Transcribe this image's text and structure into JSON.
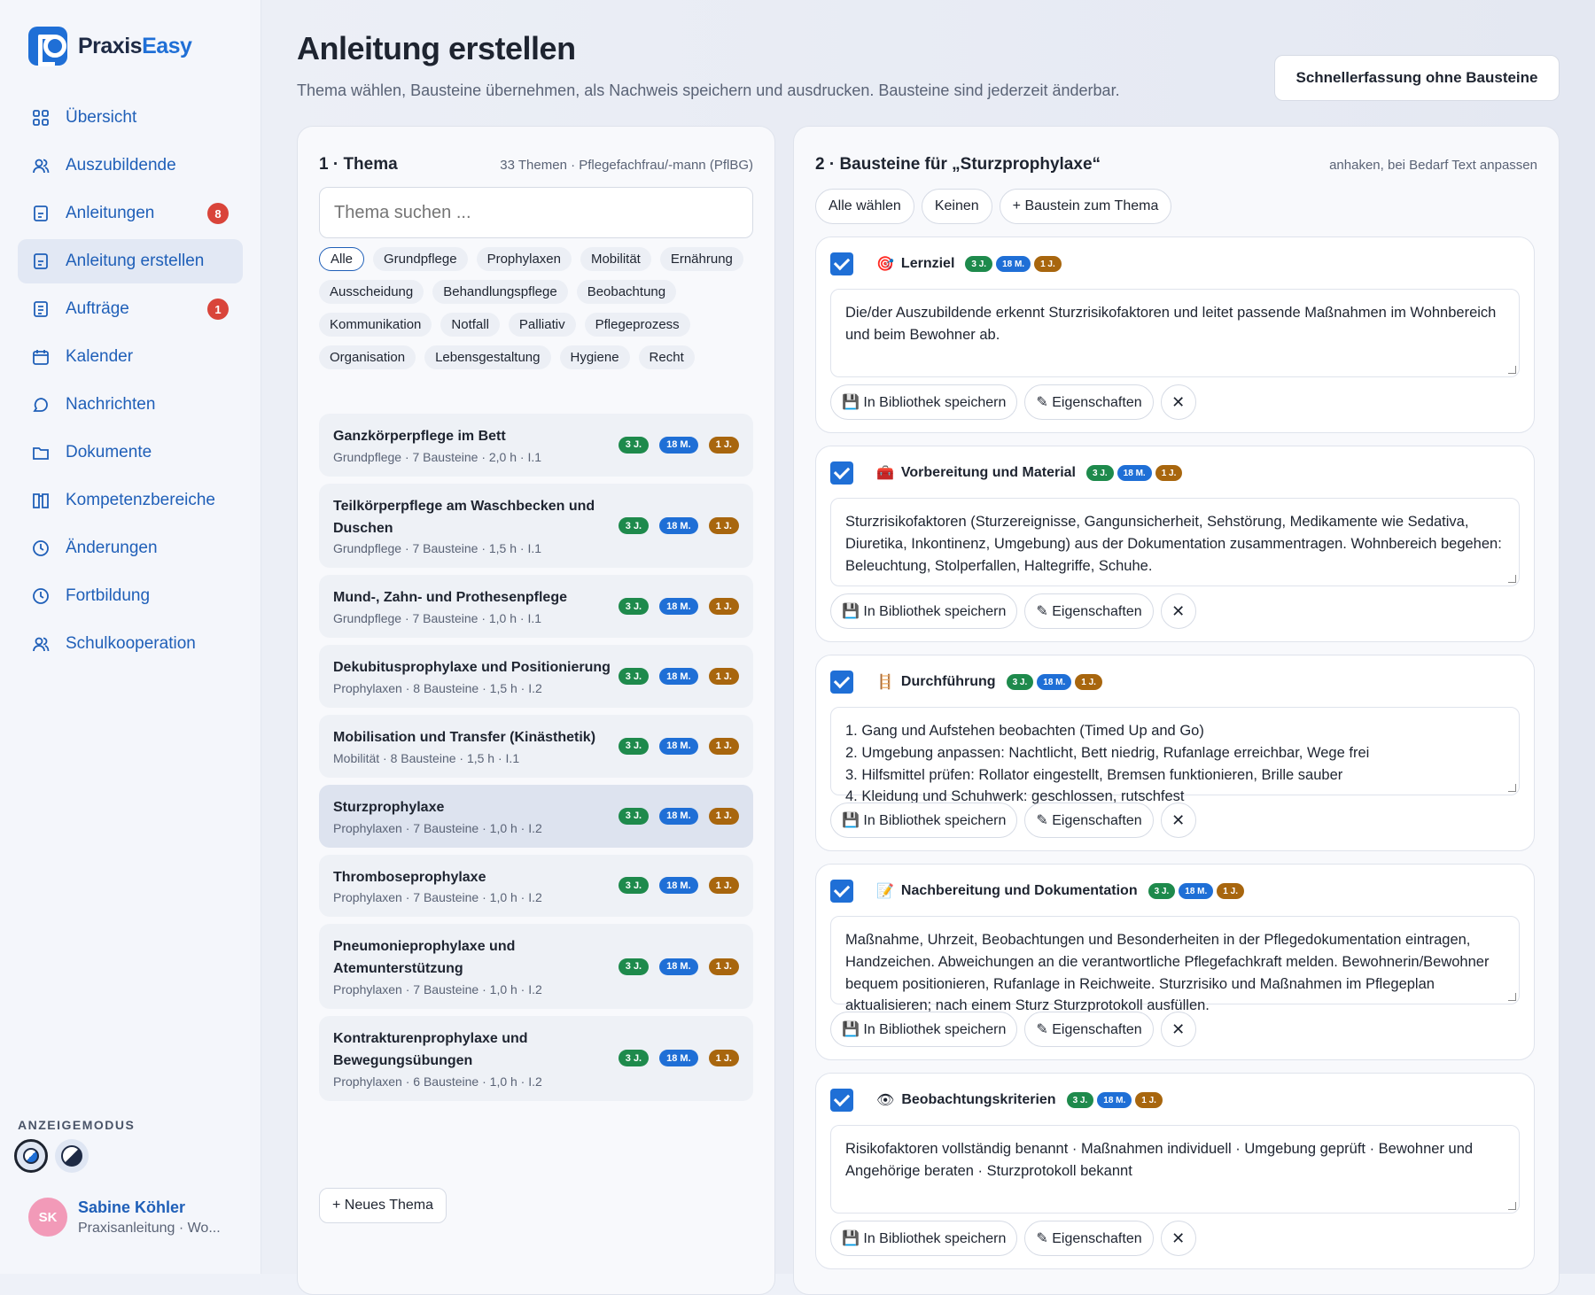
{
  "brand": {
    "name_a": "Praxis",
    "name_b": "Easy"
  },
  "nav": [
    {
      "label": "Übersicht",
      "icon": "grid-icon",
      "badge": ""
    },
    {
      "label": "Auszubildende",
      "icon": "users-icon",
      "badge": ""
    },
    {
      "label": "Anleitungen",
      "icon": "document-icon",
      "badge": "8"
    },
    {
      "label": "Anleitung erstellen",
      "icon": "document-icon",
      "badge": "",
      "active": true
    },
    {
      "label": "Aufträge",
      "icon": "list-icon",
      "badge": "1"
    },
    {
      "label": "Kalender",
      "icon": "calendar-icon",
      "badge": ""
    },
    {
      "label": "Nachrichten",
      "icon": "chat-icon",
      "badge": ""
    },
    {
      "label": "Dokumente",
      "icon": "folder-icon",
      "badge": ""
    },
    {
      "label": "Kompetenzbereiche",
      "icon": "book-icon",
      "badge": ""
    },
    {
      "label": "Änderungen",
      "icon": "clock-icon",
      "badge": ""
    },
    {
      "label": "Fortbildung",
      "icon": "clock-icon",
      "badge": ""
    },
    {
      "label": "Schulkooperation",
      "icon": "users-icon",
      "badge": ""
    }
  ],
  "mode": {
    "label": "ANZEIGEMODUS"
  },
  "user": {
    "initials": "SK",
    "name": "Sabine Köhler",
    "role": "Praxisanleitung · Wo..."
  },
  "header": {
    "title": "Anleitung erstellen",
    "subtitle": "Thema wählen, Bausteine übernehmen, als Nachweis speichern und ausdrucken. Bausteine sind jederzeit änderbar.",
    "quick_button": "Schnellerfassung ohne Bausteine"
  },
  "topics_panel": {
    "title": "1 · Thema",
    "meta": "33 Themen · Pflegefachfrau/-mann (PflBG)",
    "search_placeholder": "Thema suchen ...",
    "chips": [
      "Alle",
      "Grundpflege",
      "Prophylaxen",
      "Mobilität",
      "Ernährung",
      "Ausscheidung",
      "Behandlungspflege",
      "Beobachtung",
      "Kommunikation",
      "Notfall",
      "Palliativ",
      "Pflegeprozess",
      "Organisation",
      "Lebensgestaltung",
      "Hygiene",
      "Recht"
    ],
    "tags": [
      "3 J.",
      "18 M.",
      "1 J."
    ],
    "topics": [
      {
        "title": "Ganzkörperpflege im Bett",
        "meta": "Grundpflege · 7 Bausteine · 2,0 h · I.1"
      },
      {
        "title": "Teilkörperpflege am Waschbecken und Duschen",
        "meta": "Grundpflege · 7 Bausteine · 1,5 h · I.1"
      },
      {
        "title": "Mund-, Zahn- und Prothesenpflege",
        "meta": "Grundpflege · 7 Bausteine · 1,0 h · I.1"
      },
      {
        "title": "Dekubitusprophylaxe und Positionierung",
        "meta": "Prophylaxen · 8 Bausteine · 1,5 h · I.2"
      },
      {
        "title": "Mobilisation und Transfer (Kinästhetik)",
        "meta": "Mobilität · 8 Bausteine · 1,5 h · I.1"
      },
      {
        "title": "Sturzprophylaxe",
        "meta": "Prophylaxen · 7 Bausteine · 1,0 h · I.2",
        "active": true
      },
      {
        "title": "Thromboseprophylaxe",
        "meta": "Prophylaxen · 7 Bausteine · 1,0 h · I.2"
      },
      {
        "title": "Pneumonieprophylaxe und Atemunterstützung",
        "meta": "Prophylaxen · 7 Bausteine · 1,0 h · I.2"
      },
      {
        "title": "Kontrakturenprophylaxe und Bewegungsübungen",
        "meta": "Prophylaxen · 6 Bausteine · 1,0 h · I.2"
      }
    ],
    "new_topic": "+ Neues Thema"
  },
  "blocks_panel": {
    "title": "2 · Bausteine für „Sturzprophylaxe“",
    "meta": "anhaken, bei Bedarf Text anpassen",
    "actions": [
      "Alle wählen",
      "Keinen",
      "+ Baustein zum Thema"
    ],
    "save_label": "💾 In Bibliothek speichern",
    "props_label": "✎ Eigenschaften",
    "remove_label": "✕",
    "blocks": [
      {
        "icon": "🎯",
        "title": "Lernziel",
        "text": "Die/der Auszubildende erkennt Sturzrisikofaktoren und leitet passende Maßnahmen im Wohnbereich und beim Bewohner ab."
      },
      {
        "icon": "🧰",
        "title": "Vorbereitung und Material",
        "text": "Sturzrisikofaktoren (Sturzereignisse, Gangunsicherheit, Sehstörung, Medikamente wie Sedativa, Diuretika, Inkontinenz, Umgebung) aus der Dokumentation zusammentragen. Wohnbereich begehen: Beleuchtung, Stolperfallen, Haltegriffe, Schuhe."
      },
      {
        "icon": "🪜",
        "title": "Durchführung",
        "text": "1. Gang und Aufstehen beobachten (Timed Up and Go)\n2. Umgebung anpassen: Nachtlicht, Bett niedrig, Rufanlage erreichbar, Wege frei\n3. Hilfsmittel prüfen: Rollator eingestellt, Bremsen funktionieren, Brille sauber\n4. Kleidung und Schuhwerk: geschlossen, rutschfest"
      },
      {
        "icon": "📝",
        "title": "Nachbereitung und Dokumentation",
        "text": "Maßnahme, Uhrzeit, Beobachtungen und Besonderheiten in der Pflegedokumentation eintragen, Handzeichen. Abweichungen an die verantwortliche Pflegefachkraft melden. Bewohnerin/Bewohner bequem positionieren, Rufanlage in Reichweite. Sturzrisiko und Maßnahmen im Pflegeplan aktualisieren; nach einem Sturz Sturzprotokoll ausfüllen."
      },
      {
        "icon": "👁",
        "title": "Beobachtungskriterien",
        "text": "Risikofaktoren vollständig benannt · Maßnahmen individuell · Umgebung geprüft · Bewohner und Angehörige beraten · Sturzprotokoll bekannt"
      }
    ]
  }
}
